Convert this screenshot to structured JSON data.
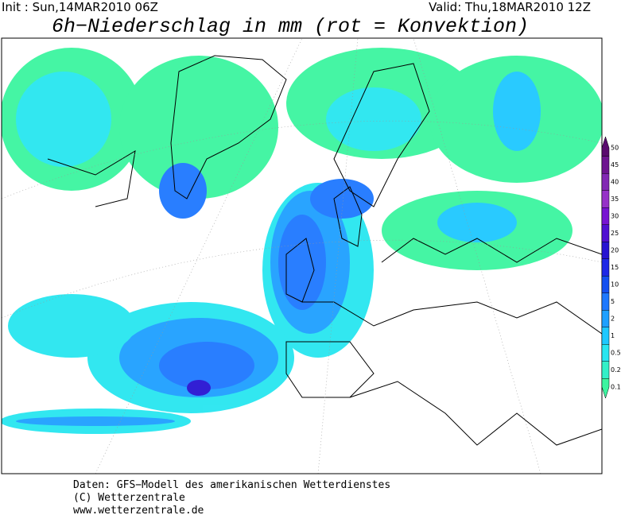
{
  "header": {
    "init": "Init : Sun,14MAR2010 06Z",
    "valid": "Valid: Thu,18MAR2010 12Z",
    "title": "6h−Niederschlag in mm (rot = Konvektion)"
  },
  "legend": {
    "levels": [
      {
        "value": 50,
        "color": "#5a0a6e"
      },
      {
        "value": 45,
        "color": "#6e1490"
      },
      {
        "value": 40,
        "color": "#8228b4"
      },
      {
        "value": 35,
        "color": "#9632c8"
      },
      {
        "value": 30,
        "color": "#7814d2"
      },
      {
        "value": 25,
        "color": "#5010d2"
      },
      {
        "value": 20,
        "color": "#2814d2"
      },
      {
        "value": 15,
        "color": "#1e28e6"
      },
      {
        "value": 10,
        "color": "#1450f0"
      },
      {
        "value": 5,
        "color": "#1e78ff"
      },
      {
        "value": 2,
        "color": "#1ea0ff"
      },
      {
        "value": 1,
        "color": "#1ec8ff"
      },
      {
        "value": 0.5,
        "color": "#28e6f0"
      },
      {
        "value": 0.2,
        "color": "#32f0c8"
      },
      {
        "value": 0.1,
        "color": "#3cf5a0"
      }
    ]
  },
  "footer": {
    "line1": "Daten: GFS−Modell des amerikanischen Wetterdienstes",
    "line2": "(C) Wetterzentrale",
    "line3": "www.wetterzentrale.de"
  }
}
